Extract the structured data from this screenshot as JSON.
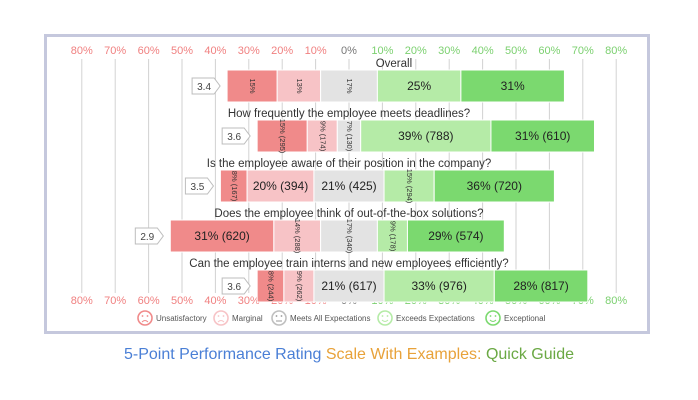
{
  "chart_data": {
    "type": "bar",
    "subtype": "diverging-stacked-horizontal",
    "axis_ticks": [
      "80%",
      "70%",
      "60%",
      "50%",
      "40%",
      "30%",
      "20%",
      "10%",
      "0%",
      "10%",
      "20%",
      "30%",
      "40%",
      "50%",
      "60%",
      "70%",
      "80%"
    ],
    "xlim": [
      -80,
      80
    ],
    "grid": true,
    "legend": {
      "placement": "bottom",
      "items": [
        {
          "label": "Unsatisfactory",
          "color": "#f08a8a",
          "icon": "very-sad-face-icon"
        },
        {
          "label": "Marginal",
          "color": "#f7c3c6",
          "icon": "sad-face-icon"
        },
        {
          "label": "Meets All Expectations",
          "color": "#e3e3e3",
          "icon": "neutral-face-icon"
        },
        {
          "label": "Exceeds Expectations",
          "color": "#b5eba7",
          "icon": "smile-face-icon"
        },
        {
          "label": "Exceptional",
          "color": "#7bd96f",
          "icon": "happy-face-icon"
        }
      ]
    },
    "series_colors": [
      "#f08a8a",
      "#f7c3c6",
      "#e3e3e3",
      "#b5eba7",
      "#7bd96f"
    ],
    "questions": [
      {
        "title": "Overall",
        "score": "3.4",
        "values": [
          15,
          13,
          17,
          25,
          31
        ],
        "labels": [
          "15%",
          "13%",
          "17%",
          "25%",
          "31%"
        ],
        "rotated": [
          true,
          true,
          true,
          false,
          false
        ]
      },
      {
        "title": "How frequently the employee meets deadlines?",
        "score": "3.6",
        "values": [
          15,
          9,
          7,
          39,
          31
        ],
        "labels": [
          "15% (295)",
          "9% (174)",
          "7% (130)",
          "39% (788)",
          "31% (610)"
        ],
        "rotated": [
          true,
          true,
          true,
          false,
          false
        ]
      },
      {
        "title": "Is the employee aware of their position in the company?",
        "score": "3.5",
        "values": [
          8,
          20,
          21,
          15,
          36
        ],
        "labels": [
          "8% (167)",
          "20% (394)",
          "21% (425)",
          "15% (294)",
          "36% (720)"
        ],
        "rotated": [
          true,
          false,
          false,
          true,
          false
        ]
      },
      {
        "title": "Does the employee think of out-of-the-box solutions?",
        "score": "2.9",
        "values": [
          31,
          14,
          17,
          9,
          29
        ],
        "labels": [
          "31% (620)",
          "14% (288)",
          "17% (340)",
          "9% (178)",
          "29% (574)"
        ],
        "rotated": [
          false,
          true,
          true,
          true,
          false
        ]
      },
      {
        "title": "Can the employee train interns and new employees efficiently?",
        "score": "3.6",
        "values": [
          8,
          9,
          21,
          33,
          28
        ],
        "labels": [
          "8% (244)",
          "9% (262)",
          "21% (617)",
          "33% (976)",
          "28% (817)"
        ],
        "rotated": [
          true,
          true,
          false,
          false,
          false
        ]
      }
    ]
  },
  "caption": {
    "parts": [
      {
        "text": "5-Point Performance Rating",
        "color": "#4a7fd6"
      },
      {
        "text": " Scale With Examples:",
        "color": "#e8a23a"
      },
      {
        "text": " Quick Guide",
        "color": "#6aa843"
      }
    ]
  }
}
